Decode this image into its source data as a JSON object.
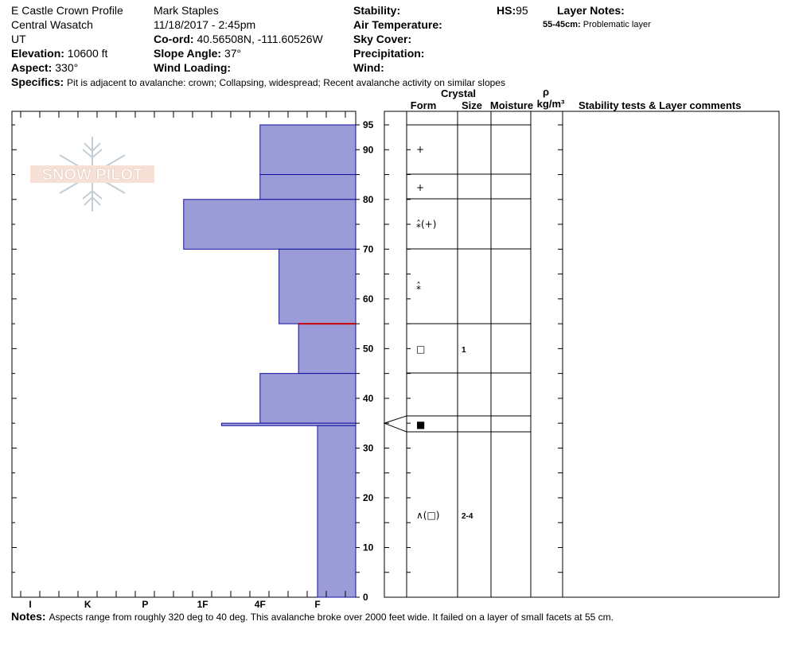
{
  "header": {
    "profile_name": "E Castle Crown Profile",
    "range": "Central Wasatch",
    "state": "UT",
    "elevation_label": "Elevation:",
    "elevation_value": "10600 ft",
    "aspect_label": "Aspect:",
    "aspect_value": "330°",
    "observer": "Mark Staples",
    "datetime": "11/18/2017 - 2:45pm",
    "coord_label": "Co-ord:",
    "coord_value": "40.56508N, -111.60526W",
    "slope_label": "Slope Angle:",
    "slope_value": "37°",
    "wind_loading_label": "Wind Loading:",
    "stability_label": "Stability:",
    "air_temp_label": "Air Temperature:",
    "sky_cover_label": "Sky Cover:",
    "precip_label": "Precipitation:",
    "wind_label": "Wind:",
    "hs_label": "HS:",
    "hs_value": "95",
    "layer_notes_label": "Layer Notes:",
    "layer_note_range": "55-45cm:",
    "layer_note_text": "Problematic layer",
    "specifics_label": "Specifics:",
    "specifics_text": "Pit is adjacent to avalanche: crown; Collapsing, widespread;  Recent avalanche activity on similar slopes"
  },
  "logo": {
    "text": "SNOW PILOT"
  },
  "columns": {
    "crystal": "Crystal",
    "form": "Form",
    "size": "Size",
    "moisture": "Moisture",
    "rho": "ρ",
    "density_unit": "kg/m³",
    "stability": "Stability tests & Layer comments"
  },
  "notes": {
    "label": "Notes:",
    "text": "Aspects range from roughly 320 deg to 40 deg. This avalanche broke over 2000 feet wide. It failed on a layer of small facets at 55 cm."
  },
  "chart_data": {
    "type": "bar",
    "orientation": "horizontal-hardness-profile",
    "y_axis": {
      "min": 0,
      "max": 95,
      "ticks": [
        0,
        10,
        20,
        30,
        40,
        50,
        60,
        70,
        80,
        90,
        95
      ]
    },
    "x_axis": {
      "ticks": [
        "I",
        "K",
        "P",
        "1F",
        "4F",
        "F"
      ]
    },
    "layers": [
      {
        "top": 95,
        "bottom": 85,
        "hardness": "4F"
      },
      {
        "top": 85,
        "bottom": 80,
        "hardness": "4F"
      },
      {
        "top": 80,
        "bottom": 70,
        "hardness": "1F+"
      },
      {
        "top": 70,
        "bottom": 55,
        "hardness": "4F-"
      },
      {
        "top": 55,
        "bottom": 45,
        "hardness": "F+"
      },
      {
        "top": 45,
        "bottom": 35,
        "hardness": "4F"
      },
      {
        "top": 35,
        "bottom": 34.5,
        "hardness": "1F-"
      },
      {
        "top": 34.5,
        "bottom": 0,
        "hardness": "F"
      }
    ],
    "layer_note_boundary": 55,
    "crystals": [
      {
        "depth": 90,
        "form": "+",
        "size": ""
      },
      {
        "depth": 82.5,
        "form": "+",
        "size": ""
      },
      {
        "depth": 75,
        "form": "⁎̂(+)",
        "size": ""
      },
      {
        "depth": 62.5,
        "form": "⁎̂",
        "size": ""
      },
      {
        "depth": 50,
        "form": "□",
        "size": "1"
      },
      {
        "depth": 35,
        "form": "■",
        "size": ""
      },
      {
        "depth": 16.5,
        "form": "∧(□)",
        "size": "2-4"
      }
    ]
  }
}
